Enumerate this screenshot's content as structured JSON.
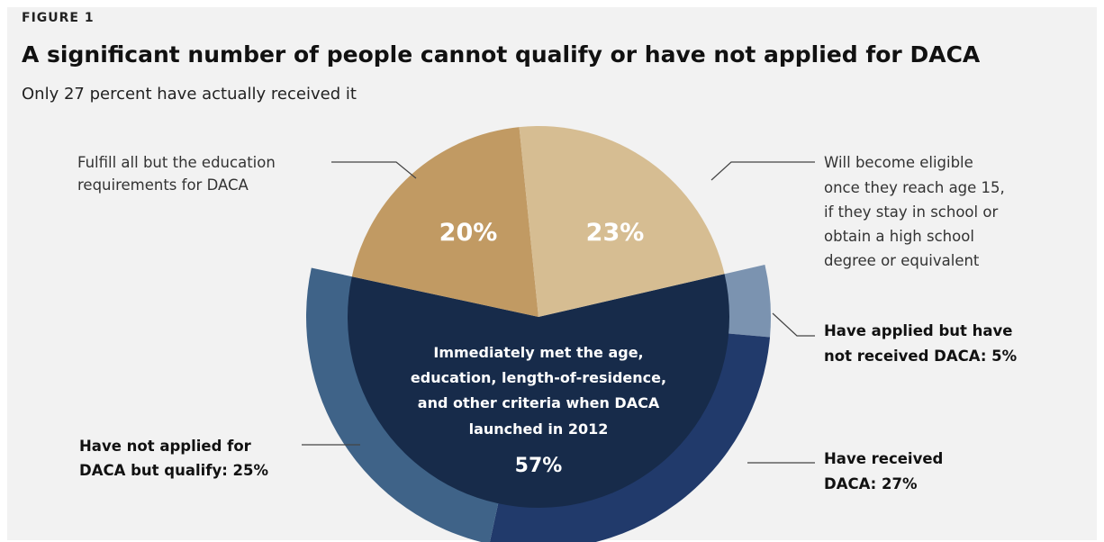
{
  "figure_label": "FIGURE 1",
  "title": "A significant number of people cannot qualify or have not applied for DACA",
  "subtitle": "Only 27 percent have actually received it",
  "colors": {
    "education_req": "#c19a63",
    "future_eligible": "#d6bd92",
    "immediate": "#1e3657",
    "applied_outer": "#7b93b0",
    "not_applied_outer": "#3f6388",
    "received_outer": "#213a6b",
    "inner_overlay": "#172b4a"
  },
  "chart_data": {
    "type": "pie",
    "title": "A significant number of people cannot qualify or have not applied for DACA",
    "slices": [
      {
        "label": "Immediately met the age, education, length-of-residence, and other criteria when DACA launched in 2012",
        "value": 57
      },
      {
        "label": "Will become eligible once they reach age 15, if they stay in school or obtain a high school degree or equivalent",
        "value": 23
      },
      {
        "label": "Fulfill all but the education requirements for DACA",
        "value": 20
      }
    ],
    "breakdown_of_57": [
      {
        "label": "Have applied but have not received DACA",
        "value": 5
      },
      {
        "label": "Have received DACA",
        "value": 27
      },
      {
        "label": "Have not applied for DACA but qualify",
        "value": 25
      }
    ]
  },
  "labels": {
    "education_req_line1": "Fulfill all but the education",
    "education_req_line2": "requirements for DACA",
    "future_line1": "Will become eligible",
    "future_line2": "once they reach age 15,",
    "future_line3": "if they stay in school or",
    "future_line4": "obtain a high school",
    "future_line5": "degree or equivalent",
    "applied_line1": "Have applied but have",
    "applied_line2": "not received DACA: 5%",
    "received_line1": "Have received",
    "received_line2": "DACA: 27%",
    "not_applied_line1": "Have not applied for",
    "not_applied_line2": "DACA but qualify: 25%",
    "center_line1": "Immediately met the age,",
    "center_line2": "education, length-of-residence,",
    "center_line3": "and other criteria when DACA",
    "center_line4": "launched in 2012",
    "center_pct": "57%",
    "pct_education": "20%",
    "pct_future": "23%"
  }
}
